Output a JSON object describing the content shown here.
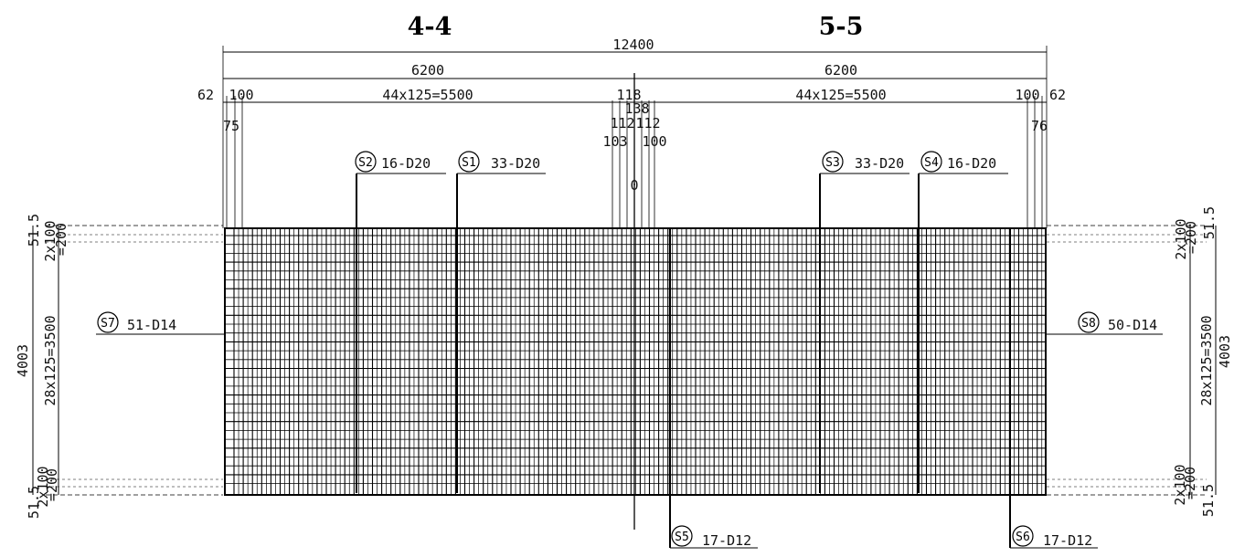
{
  "sections": {
    "left": "4-4",
    "right": "5-5"
  },
  "dims": {
    "overall": "12400",
    "half_left": "6200",
    "half_right": "6200",
    "spacing_left": "44x125=5500",
    "spacing_right": "44x125=5500",
    "edge_left_62": "62",
    "edge_left_100": "100",
    "edge_right_100": "100",
    "edge_right_62": "62",
    "mid_118": "118",
    "mid_138": "138",
    "mid_112a": "112",
    "mid_112b": "112",
    "mid_103": "103",
    "mid_100": "100",
    "mid_0": "0",
    "sub_left_75": "75",
    "sub_right_76": "76",
    "left_height": "4003",
    "right_height": "4003",
    "left_span": "28x125=3500",
    "right_span": "28x125=3500",
    "left_top_515": "51.5",
    "left_top_2x100": "2x100",
    "left_top_200": "=200",
    "left_bot_515": "51.5",
    "left_bot_2x100": "2x100",
    "left_bot_200": "=200",
    "right_top_515": "51.5",
    "right_top_2x100": "2x100",
    "right_top_200": "=200",
    "right_bot_515": "51.5",
    "right_bot_2x100": "2x100",
    "right_bot_200": "=200"
  },
  "rebar_callouts": [
    {
      "mark": "S2",
      "spec": "16-D20"
    },
    {
      "mark": "S1",
      "spec": "33-D20"
    },
    {
      "mark": "S3",
      "spec": "33-D20"
    },
    {
      "mark": "S4",
      "spec": "16-D20"
    },
    {
      "mark": "S7",
      "spec": "51-D14"
    },
    {
      "mark": "S8",
      "spec": "50-D14"
    },
    {
      "mark": "S5",
      "spec": "17-D12"
    },
    {
      "mark": "S6",
      "spec": "17-D12"
    }
  ]
}
